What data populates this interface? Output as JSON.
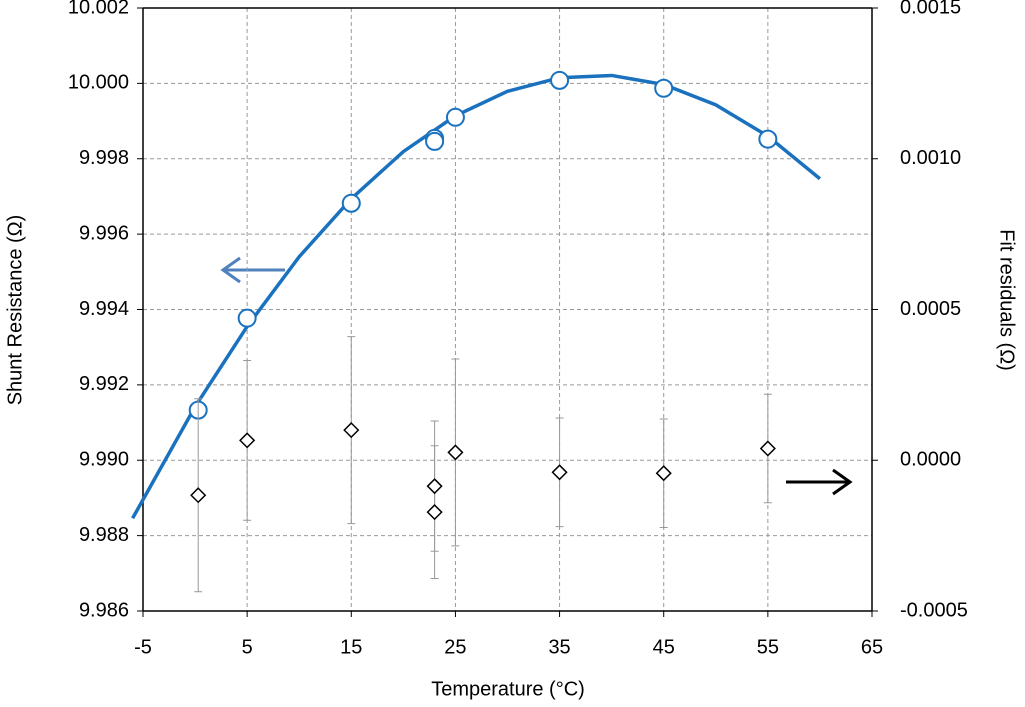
{
  "chart_data": {
    "type": "scatter",
    "xlabel": "Temperature (°C)",
    "ylabel": "Shunt Resistance (Ω)",
    "y2label": "Fit residuals (Ω)",
    "xlim": [
      -5,
      65
    ],
    "xticks": [
      -5,
      5,
      15,
      25,
      35,
      45,
      55,
      65
    ],
    "ylim": [
      9.986,
      10.002
    ],
    "yticks": [
      9.986,
      9.988,
      {
        "value": 9.99,
        "label": "9.990"
      },
      9.992,
      9.994,
      9.996,
      9.998,
      {
        "value": 10,
        "label": "10.000"
      },
      10.002
    ],
    "y2lim": [
      -0.0005,
      0.0015
    ],
    "y2ticks": [
      -0.0005,
      {
        "value": 0,
        "label": "0.0000"
      },
      0.0005,
      {
        "value": 0.001,
        "label": "0.0010"
      },
      0.0015
    ],
    "grid": true,
    "series": [
      {
        "kind": "line",
        "color": "#1a72bf",
        "x": [
          -6,
          0,
          5,
          10,
          15,
          20,
          25,
          30,
          35,
          40,
          45,
          50,
          55,
          60
        ],
        "values": [
          9.98846,
          9.99142,
          9.99355,
          9.9954,
          9.99694,
          9.99819,
          9.99914,
          9.99979,
          10.00015,
          10.00021,
          9.99997,
          9.99943,
          9.9986,
          9.99747
        ]
      },
      {
        "kind": "marker",
        "marker": "circle",
        "color": "#1a72bf",
        "x": [
          0.3,
          5,
          15,
          23,
          23,
          25,
          35,
          45,
          55
        ],
        "values": [
          9.99133,
          9.99377,
          9.99682,
          9.99854,
          9.99846,
          9.9991,
          10.00008,
          9.99987,
          9.99852
        ]
      },
      {
        "kind": "marker",
        "marker": "diamond",
        "color": "#000000",
        "axis": "y2",
        "error_color": "#999999",
        "x": [
          0.3,
          5,
          15,
          23,
          23,
          25,
          35,
          45,
          55
        ],
        "values": [
          -0.000116,
          6.6e-05,
          0.0001,
          -8.6e-05,
          -0.000172,
          2.6e-05,
          -4e-05,
          -4.3e-05,
          3.9e-05
        ],
        "errors": [
          0.00032,
          0.000265,
          0.00031,
          0.000216,
          0.00022,
          0.00031,
          0.00018,
          0.00018,
          0.00018
        ]
      }
    ]
  }
}
